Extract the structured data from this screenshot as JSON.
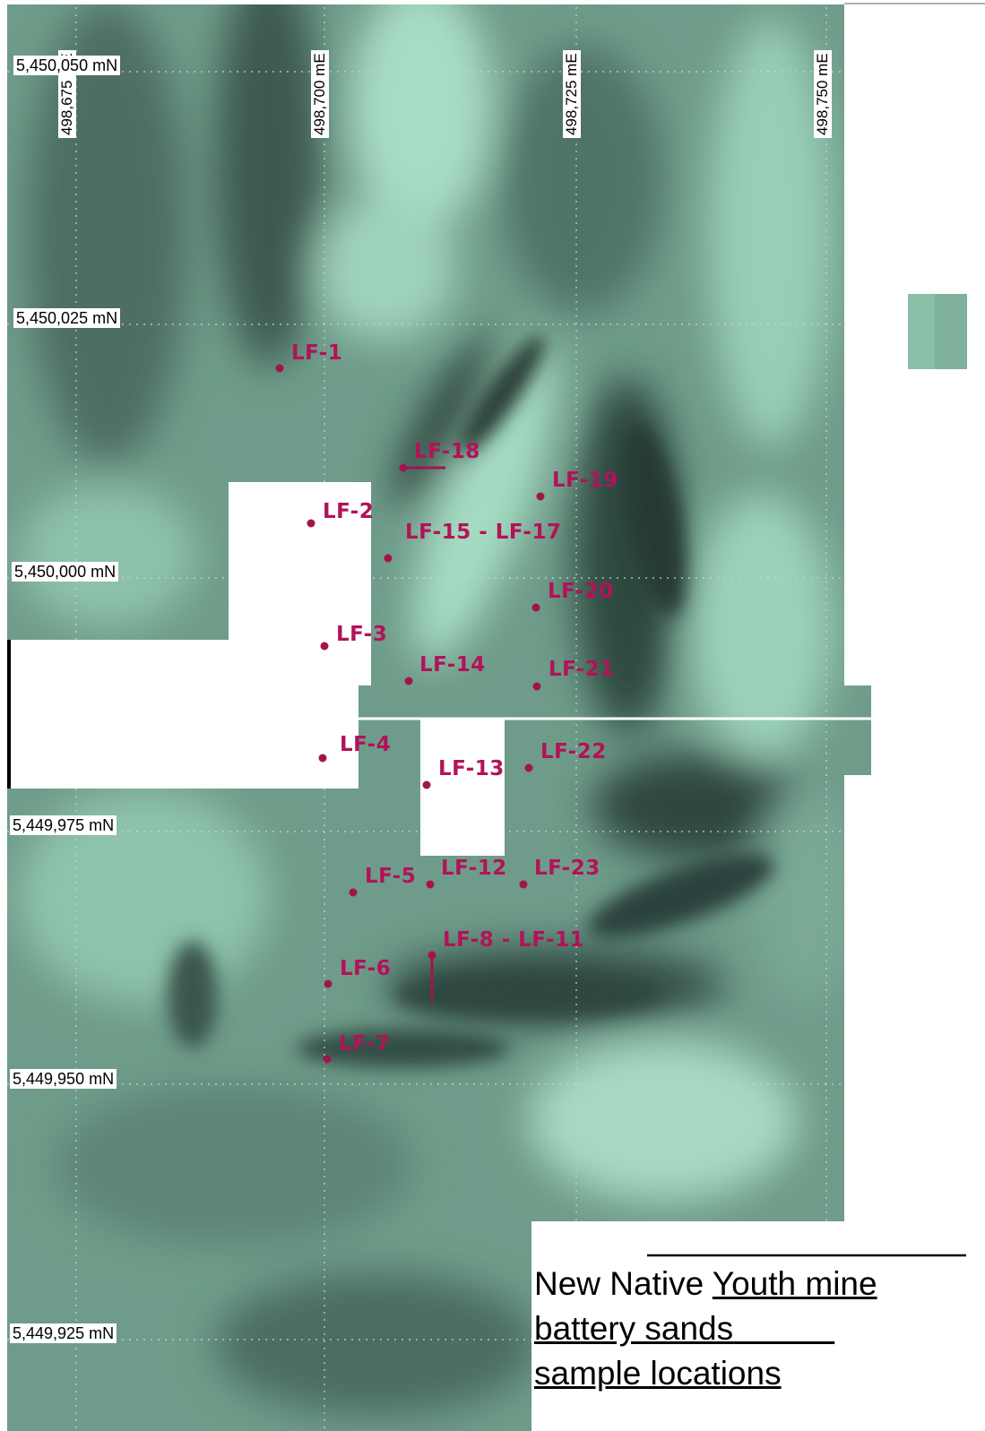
{
  "map": {
    "easting_labels": [
      "498,675 mE",
      "498,700 mE",
      "498,725 mE",
      "498,750 mE"
    ],
    "northing_labels": [
      "5,450,050 mN",
      "5,450,025 mN",
      "5,450,000 mN",
      "5,449,975 mN",
      "5,449,950 mN",
      "5,449,925 mN"
    ],
    "samples": [
      {
        "id": "LF-1",
        "label": "LF-1"
      },
      {
        "id": "LF-2",
        "label": "LF-2"
      },
      {
        "id": "LF-3",
        "label": "LF-3"
      },
      {
        "id": "LF-4",
        "label": "LF-4"
      },
      {
        "id": "LF-5",
        "label": "LF-5"
      },
      {
        "id": "LF-6",
        "label": "LF-6"
      },
      {
        "id": "LF-7",
        "label": "LF-7"
      },
      {
        "id": "LF-8-LF-11",
        "label": "LF-8 - LF-11"
      },
      {
        "id": "LF-12",
        "label": "LF-12"
      },
      {
        "id": "LF-13",
        "label": "LF-13"
      },
      {
        "id": "LF-14",
        "label": "LF-14"
      },
      {
        "id": "LF-15-LF-17",
        "label": "LF-15 - LF-17"
      },
      {
        "id": "LF-18",
        "label": "LF-18"
      },
      {
        "id": "LF-19",
        "label": "LF-19"
      },
      {
        "id": "LF-20",
        "label": "LF-20"
      },
      {
        "id": "LF-21",
        "label": "LF-21"
      },
      {
        "id": "LF-22",
        "label": "LF-22"
      },
      {
        "id": "LF-23",
        "label": "LF-23"
      }
    ],
    "colors": {
      "sample_marker": "#a3144f",
      "imagery_light": "#8fc7ae",
      "imagery_dark": "#3f5c52"
    }
  },
  "caption": {
    "line1_a": "New Native ",
    "line1_b": "Youth mine",
    "line2": "battery sands",
    "line3": "sample locations"
  }
}
